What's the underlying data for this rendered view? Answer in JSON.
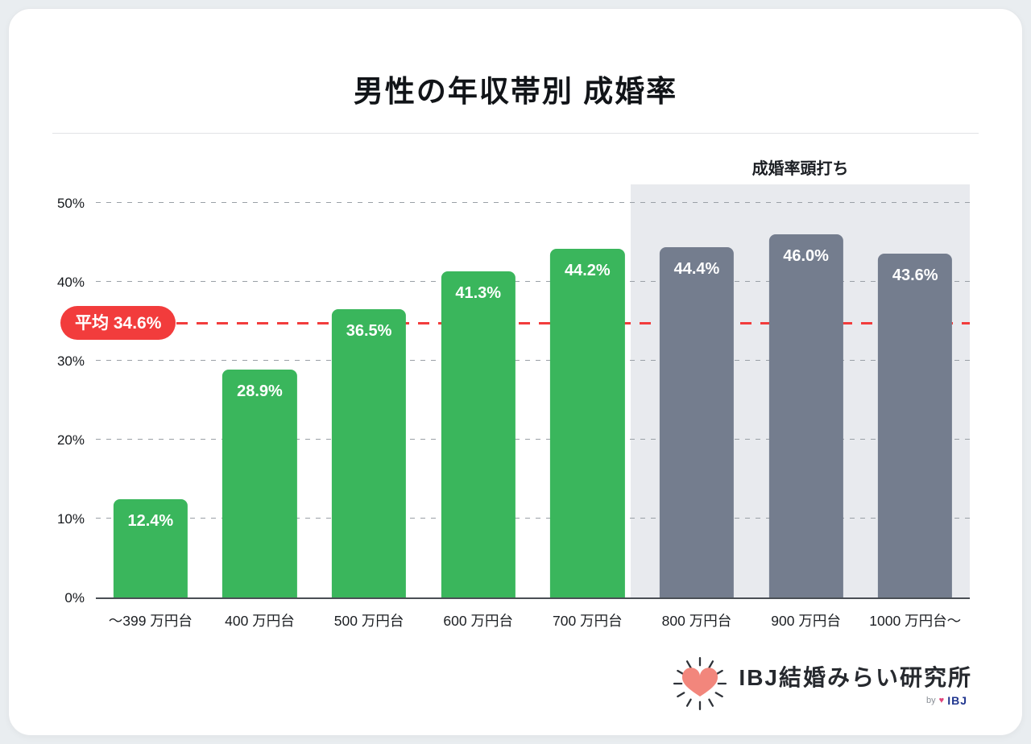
{
  "title": "男性の年収帯別 成婚率",
  "plateau_label": "成婚率頭打ち",
  "average": {
    "label": "平均 34.6%",
    "value": 34.6
  },
  "chart_data": {
    "type": "bar",
    "title": "男性の年収帯別 成婚率",
    "categories": [
      "～399 万円台",
      "400 万円台",
      "500 万円台",
      "600 万円台",
      "700 万円台",
      "800 万円台",
      "900 万円台",
      "1000 万円台～"
    ],
    "values": [
      12.4,
      28.9,
      36.5,
      41.3,
      44.2,
      44.4,
      46.0,
      43.6
    ],
    "value_labels": [
      "12.4%",
      "28.9%",
      "36.5%",
      "41.3%",
      "44.2%",
      "44.4%",
      "46.0%",
      "43.6%"
    ],
    "groups": [
      "green",
      "green",
      "green",
      "green",
      "green",
      "gray",
      "gray",
      "gray"
    ],
    "ytick_values": [
      0,
      10,
      20,
      30,
      40,
      50
    ],
    "ytick_labels": [
      "0%",
      "10%",
      "20%",
      "30%",
      "40%",
      "50%"
    ],
    "ylim": [
      0,
      52.5
    ],
    "average_line": 34.6,
    "average_line_label": "平均 34.6%",
    "shaded_from_index": 5,
    "shaded_region_label": "成婚率頭打ち",
    "grid": "dashed-horizontal",
    "legend": "none"
  },
  "colors": {
    "green": "#3ab65c",
    "gray": "#747d8e",
    "red": "#f23c3c",
    "shade": "#e8eaee"
  },
  "footer": {
    "brand": "IBJ結婚みらい研究所",
    "by": "by",
    "by_brand": "IBJ"
  }
}
